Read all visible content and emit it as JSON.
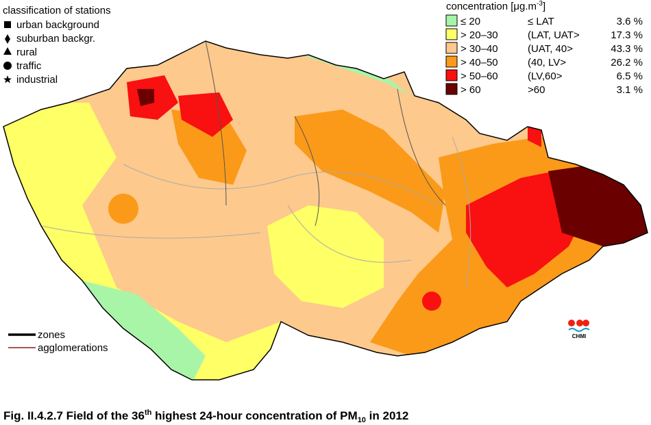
{
  "legend_stations": {
    "title": "classification of stations",
    "items": [
      "urban background",
      "suburban backgr.",
      "rural",
      "traffic",
      "industrial"
    ]
  },
  "legend_concentration": {
    "title": "concentration [μg.m",
    "title_superscript": "-3",
    "title_end": "]",
    "classes": [
      {
        "range": "≤ 20",
        "label": "≤ LAT",
        "share": "3.6 %",
        "color": "#a8f5a8"
      },
      {
        "range": "> 20–30",
        "label": "(LAT, UAT>",
        "share": "17.3 %",
        "color": "#ffff66"
      },
      {
        "range": "> 30–40",
        "label": "(UAT, 40>",
        "share": "43.3 %",
        "color": "#fdc98c"
      },
      {
        "range": "> 40–50",
        "label": "(40, LV>",
        "share": "26.2 %",
        "color": "#fb9a18"
      },
      {
        "range": "> 50–60",
        "label": "(LV,60>",
        "share": "6.5 %",
        "color": "#f91010"
      },
      {
        "range": "> 60",
        "label": ">60",
        "share": "3.1 %",
        "color": "#6b0000"
      }
    ]
  },
  "legend_lines": [
    "zones",
    "agglomerations"
  ],
  "logo": "CHMI",
  "caption": {
    "prefix": "Fig. II.4.2.7  Field of the 36",
    "ordinal": "th",
    "middle": " highest 24-hour concentration of PM",
    "subscript": "10",
    "suffix": " in 2012"
  }
}
